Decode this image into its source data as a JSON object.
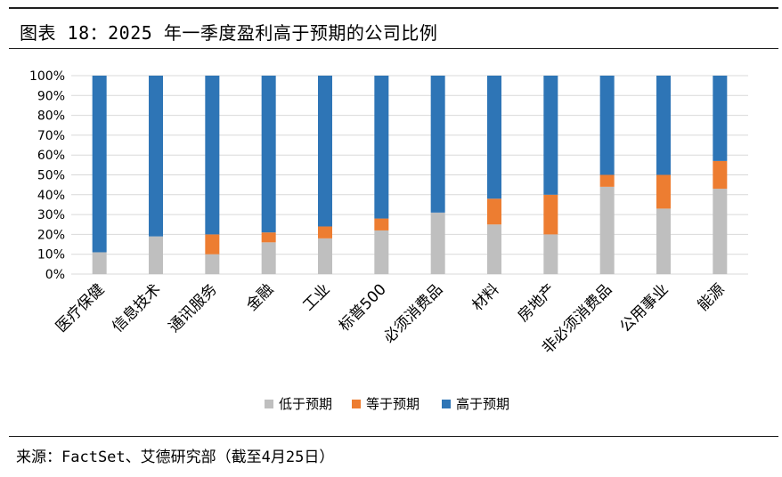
{
  "header": {
    "title": "图表 18：2025 年一季度盈利高于预期的公司比例"
  },
  "footer": {
    "source": "来源：FactSet、艾德研究部（截至4月25日）"
  },
  "colors": {
    "below": "#bfbfbf",
    "inline": "#ed7d31",
    "above": "#2e75b6",
    "grid": "#d9d9d9"
  },
  "chart_data": {
    "type": "bar",
    "stacked": true,
    "title": "图表 18：2025 年一季度盈利高于预期的公司比例",
    "categories": [
      "医疗保健",
      "信息技术",
      "通讯服务",
      "金融",
      "工业",
      "标普500",
      "必须消费品",
      "材料",
      "房地产",
      "非必须消费品",
      "公用事业",
      "能源"
    ],
    "series": [
      {
        "name": "低于预期",
        "values": [
          11,
          19,
          10,
          16,
          18,
          22,
          31,
          25,
          20,
          44,
          33,
          43
        ]
      },
      {
        "name": "等于预期",
        "values": [
          0,
          0,
          10,
          5,
          6,
          6,
          0,
          13,
          20,
          6,
          17,
          14
        ]
      },
      {
        "name": "高于预期",
        "values": [
          89,
          81,
          80,
          79,
          76,
          72,
          69,
          62,
          60,
          50,
          50,
          43
        ]
      }
    ],
    "ylim": [
      0,
      100
    ],
    "yticks": [
      "0%",
      "10%",
      "20%",
      "30%",
      "40%",
      "50%",
      "60%",
      "70%",
      "80%",
      "90%",
      "100%"
    ],
    "xlabel": "",
    "ylabel": "",
    "grid": true,
    "legend_position": "bottom-center"
  }
}
